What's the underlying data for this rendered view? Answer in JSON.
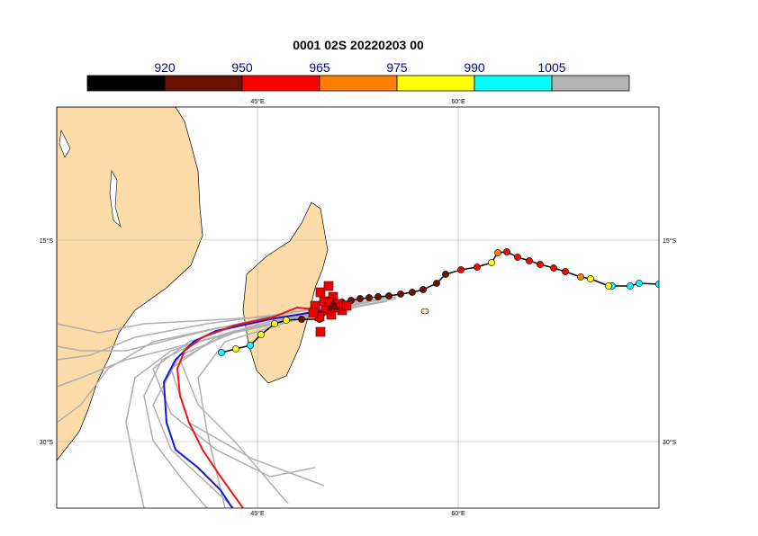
{
  "title": "0001 02S 20220203 00",
  "colorbar": {
    "levels": [
      920,
      950,
      965,
      975,
      990,
      1005
    ],
    "colors": [
      "#000000",
      "#6b1005",
      "#ff0000",
      "#ff8000",
      "#ffff00",
      "#00ffff",
      "#b3b3b3"
    ]
  },
  "axes": {
    "top_labels": [
      "45°E",
      "60°E"
    ],
    "bottom_labels": [
      "45°E",
      "60°E"
    ],
    "left_labels": [
      "15°S",
      "30°S"
    ],
    "right_labels": [
      "15°S",
      "30°S"
    ]
  }
}
